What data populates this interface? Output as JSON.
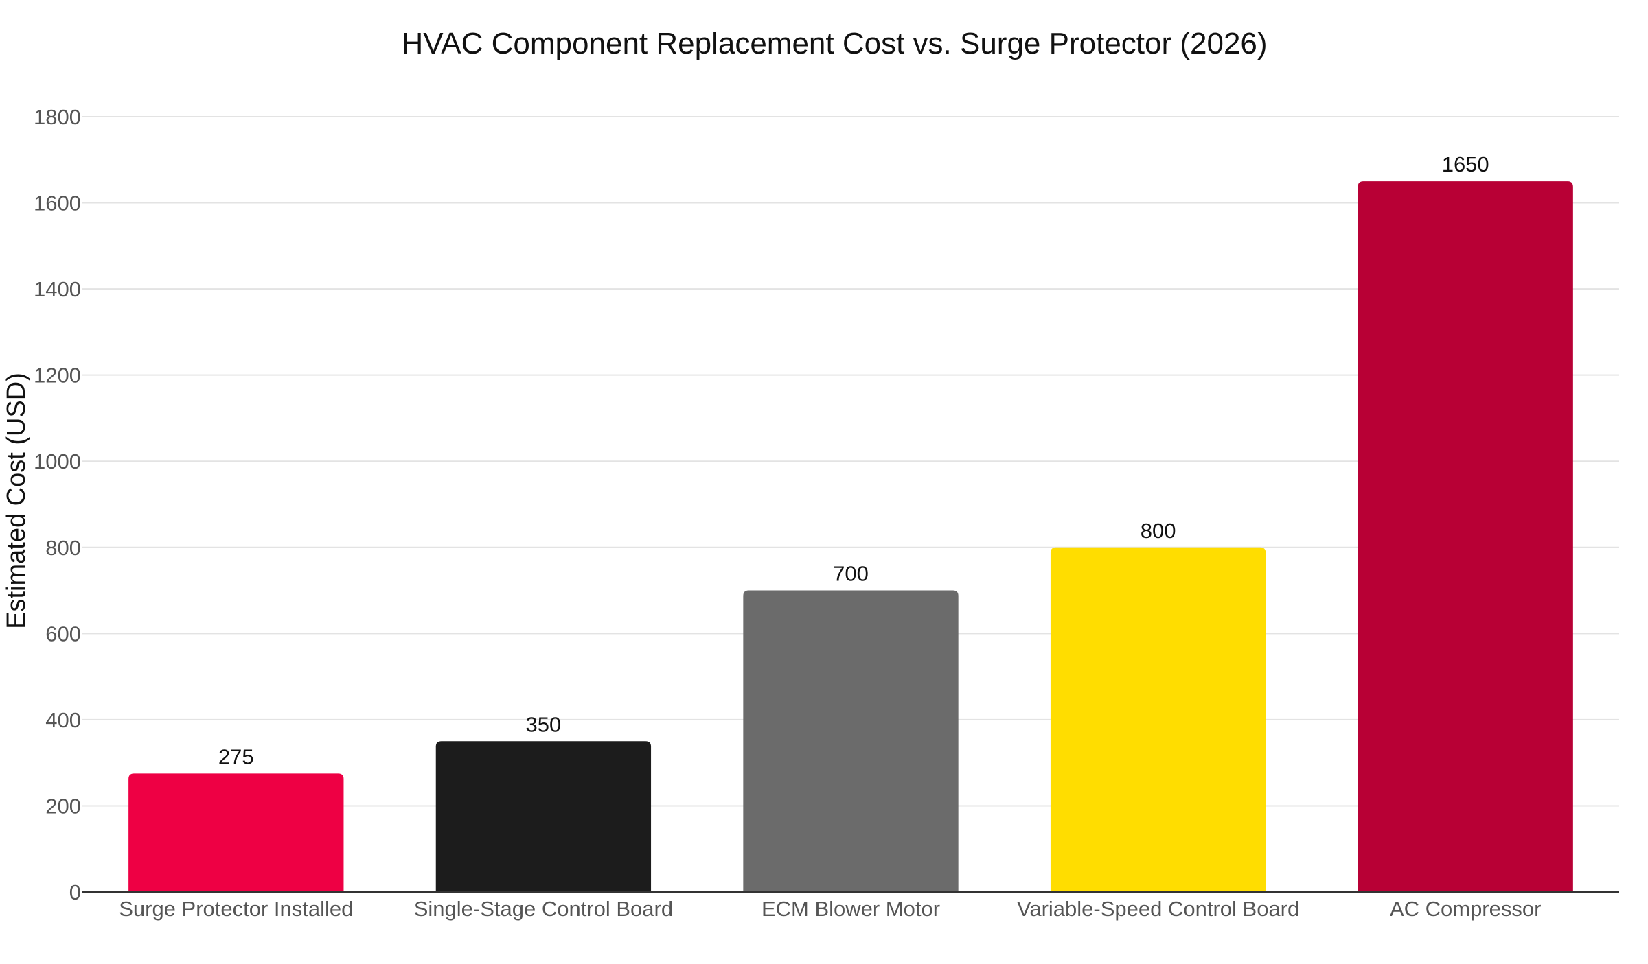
{
  "chart_data": {
    "type": "bar",
    "title": "HVAC Component Replacement Cost vs. Surge Protector (2026)",
    "xlabel": "",
    "ylabel": "Estimated Cost (USD)",
    "ylim": [
      0,
      1800
    ],
    "yticks": [
      0,
      200,
      400,
      600,
      800,
      1000,
      1200,
      1400,
      1600,
      1800
    ],
    "grid": true,
    "categories": [
      "Surge Protector Installed",
      "Single-Stage Control Board",
      "ECM Blower Motor",
      "Variable-Speed Control Board",
      "AC Compressor"
    ],
    "values": [
      275,
      350,
      700,
      800,
      1650
    ],
    "colors": [
      "#ee0044",
      "#1c1c1c",
      "#6b6b6b",
      "#ffdd00",
      "#b80035"
    ],
    "data_labels": [
      "275",
      "350",
      "700",
      "800",
      "1650"
    ]
  }
}
